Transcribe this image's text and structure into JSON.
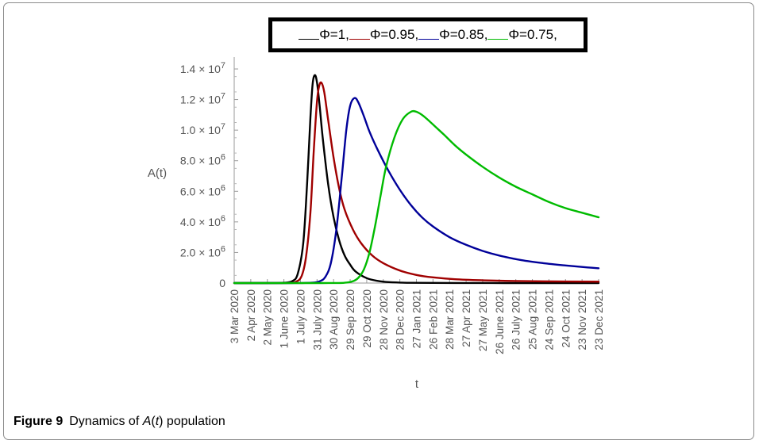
{
  "chart_data": {
    "type": "line",
    "title": "",
    "xlabel": "t",
    "ylabel": "A(t)",
    "ylim": [
      0,
      14000000
    ],
    "y_ticks": [
      {
        "value": 0,
        "label": "0",
        "exp": ""
      },
      {
        "value": 2000000,
        "label": "2.0 × 10",
        "exp": "6"
      },
      {
        "value": 4000000,
        "label": "4.0 × 10",
        "exp": "6"
      },
      {
        "value": 6000000,
        "label": "6.0 × 10",
        "exp": "6"
      },
      {
        "value": 8000000,
        "label": "8.0 × 10",
        "exp": "6"
      },
      {
        "value": 10000000,
        "label": "1.0 × 10",
        "exp": "7"
      },
      {
        "value": 12000000,
        "label": "1.2 × 10",
        "exp": "7"
      },
      {
        "value": 14000000,
        "label": "1.4 × 10",
        "exp": "7"
      }
    ],
    "x_ticks": [
      "3 Mar 2020",
      "2 Apr 2020",
      "2 May 2020",
      "1 June 2020",
      "1 July 2020",
      "31 July 2020",
      "30 Aug 2020",
      "29 Sep 2020",
      "29 Oct 2020",
      "28 Nov 2020",
      "28 Dec 2020",
      "27 Jan 2021",
      "26 Feb 2021",
      "28 Mar 2021",
      "27 Apr 2021",
      "27 May 2021",
      "26 June 2021",
      "26 July 2021",
      "25 Aug 2021",
      "24 Sep 2021",
      "24 Oct 2021",
      "23 Nov 2021",
      "23 Dec 2021"
    ],
    "x_tick_day": [
      0,
      30,
      60,
      90,
      120,
      150,
      180,
      210,
      240,
      270,
      300,
      330,
      360,
      390,
      420,
      450,
      480,
      510,
      540,
      570,
      600,
      630,
      660
    ],
    "xlim_day": [
      0,
      660
    ],
    "grid": false,
    "legend_position": "top",
    "series": [
      {
        "name": "Φ=1,",
        "color": "#000000",
        "x_day": [
          0,
          60,
          90,
          105,
          115,
          125,
          132,
          138,
          142,
          146,
          150,
          155,
          160,
          170,
          180,
          190,
          200,
          210,
          220,
          240,
          260,
          280,
          320,
          400,
          500,
          600,
          660
        ],
        "y": [
          0,
          0,
          20000,
          120000,
          600000,
          2600000,
          6500000,
          10800000,
          13000000,
          13600000,
          13100000,
          11500000,
          9600000,
          6500000,
          4300000,
          2800000,
          1800000,
          1200000,
          750000,
          320000,
          140000,
          60000,
          15000,
          2000,
          500,
          100,
          50
        ]
      },
      {
        "name": "Φ=0.95,",
        "color": "#a00000",
        "x_day": [
          0,
          80,
          100,
          112,
          122,
          130,
          138,
          144,
          150,
          154,
          158,
          163,
          170,
          180,
          190,
          200,
          215,
          230,
          250,
          270,
          300,
          330,
          360,
          400,
          450,
          500,
          560,
          660
        ],
        "y": [
          0,
          0,
          10000,
          90000,
          450000,
          1700000,
          4600000,
          8600000,
          11900000,
          12900000,
          13100000,
          12500000,
          10700000,
          8200000,
          6200000,
          4800000,
          3500000,
          2600000,
          1800000,
          1300000,
          820000,
          530000,
          370000,
          250000,
          180000,
          140000,
          110000,
          90000
        ]
      },
      {
        "name": "Φ=0.85,",
        "color": "#000099",
        "x_day": [
          0,
          100,
          140,
          155,
          165,
          175,
          185,
          195,
          203,
          210,
          218,
          225,
          235,
          245,
          260,
          280,
          300,
          320,
          340,
          360,
          390,
          420,
          450,
          480,
          520,
          560,
          600,
          640,
          660
        ],
        "y": [
          0,
          0,
          20000,
          120000,
          400000,
          1300000,
          3500000,
          7000000,
          10000000,
          11600000,
          12100000,
          11800000,
          10900000,
          9900000,
          8700000,
          7300000,
          6100000,
          5100000,
          4300000,
          3700000,
          3000000,
          2500000,
          2100000,
          1800000,
          1500000,
          1300000,
          1150000,
          1020000,
          970000
        ]
      },
      {
        "name": "Φ=0.75,",
        "color": "#00bb00",
        "x_day": [
          0,
          160,
          200,
          215,
          225,
          235,
          245,
          255,
          265,
          275,
          290,
          305,
          320,
          330,
          340,
          350,
          365,
          380,
          400,
          420,
          450,
          480,
          510,
          540,
          570,
          600,
          630,
          660
        ],
        "y": [
          0,
          0,
          20000,
          120000,
          350000,
          900000,
          2000000,
          3700000,
          5700000,
          7600000,
          9500000,
          10700000,
          11200000,
          11200000,
          11000000,
          10700000,
          10200000,
          9700000,
          9000000,
          8400000,
          7600000,
          6900000,
          6300000,
          5800000,
          5300000,
          4900000,
          4600000,
          4300000
        ]
      }
    ]
  },
  "caption": {
    "label": "Figure 9",
    "text_prefix": "Dynamics of ",
    "text_italic": "A",
    "text_mid": "(",
    "text_var": "t",
    "text_suffix": ") population"
  }
}
